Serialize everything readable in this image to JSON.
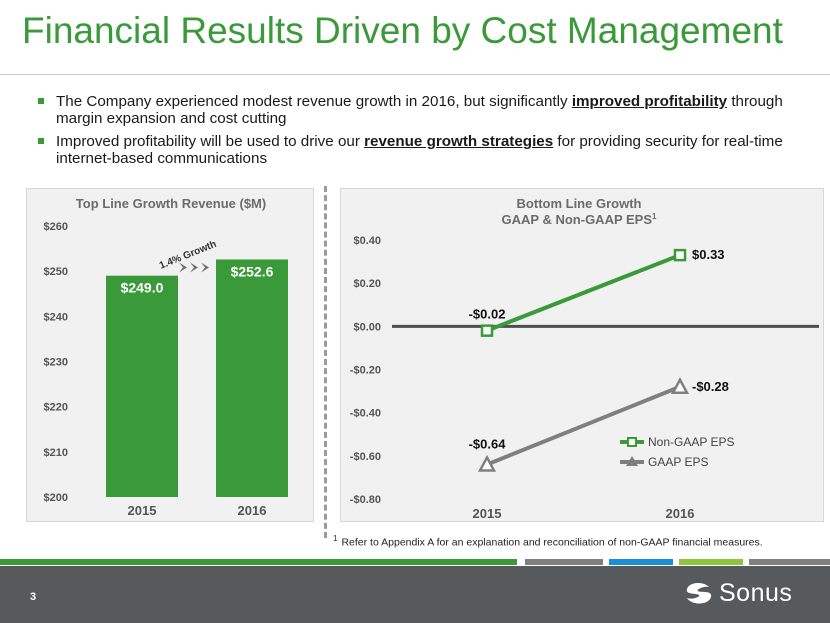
{
  "slide": {
    "title": "Financial Results Driven by Cost Management",
    "page_number": "3",
    "brand": "Sonus",
    "footnote_marker": "1",
    "footnote_text": "Refer to Appendix A for an explanation and reconciliation of non-GAAP financial measures."
  },
  "bullets": [
    {
      "before": "The Company experienced modest revenue growth in 2016, but significantly ",
      "emphasis": "improved profitability",
      "after": " through margin expansion and cost cutting"
    },
    {
      "before": "Improved profitability will be used to drive our ",
      "emphasis": "revenue growth strategies",
      "after": " for providing security for real-time internet-based communications"
    }
  ],
  "colors": {
    "green": "#3a9a3a",
    "gray_line": "#7f7f7f",
    "zero_line": "#4d4d4d",
    "footer": "#575a5d",
    "stripe_green": "#3a9a3a",
    "stripe_gray": "#7f7f7f",
    "stripe_blue": "#1a8fd3",
    "stripe_lime": "#8cc63f"
  },
  "chart_data": [
    {
      "type": "bar",
      "title": "Top Line Growth Revenue ($M)",
      "categories": [
        "2015",
        "2016"
      ],
      "values": [
        249.0,
        252.6
      ],
      "value_labels": [
        "$249.0",
        "$252.6"
      ],
      "ylim": [
        200,
        260
      ],
      "y_ticks": [
        200,
        210,
        220,
        230,
        240,
        250,
        260
      ],
      "y_tick_labels": [
        "$200",
        "$210",
        "$220",
        "$230",
        "$240",
        "$250",
        "$260"
      ],
      "annotation": "1.4% Growth",
      "xlabel": "",
      "ylabel": ""
    },
    {
      "type": "line",
      "title_line1": "Bottom Line Growth",
      "title_line2": "GAAP & Non-GAAP EPS",
      "title_superscript": "1",
      "categories": [
        "2015",
        "2016"
      ],
      "ylim": [
        -0.8,
        0.4
      ],
      "y_ticks": [
        -0.8,
        -0.6,
        -0.4,
        -0.2,
        0.0,
        0.2,
        0.4
      ],
      "y_tick_labels": [
        "-$0.80",
        "-$0.60",
        "-$0.40",
        "-$0.20",
        "$0.00",
        "$0.20",
        "$0.40"
      ],
      "series": [
        {
          "name": "Non-GAAP EPS",
          "values": [
            -0.02,
            0.33
          ],
          "labels": [
            "-$0.02",
            "$0.33"
          ],
          "marker": "square"
        },
        {
          "name": "GAAP EPS",
          "values": [
            -0.64,
            -0.28
          ],
          "labels": [
            "-$0.64",
            "-$0.28"
          ],
          "marker": "triangle"
        }
      ],
      "legend_position": "bottom-right"
    }
  ]
}
